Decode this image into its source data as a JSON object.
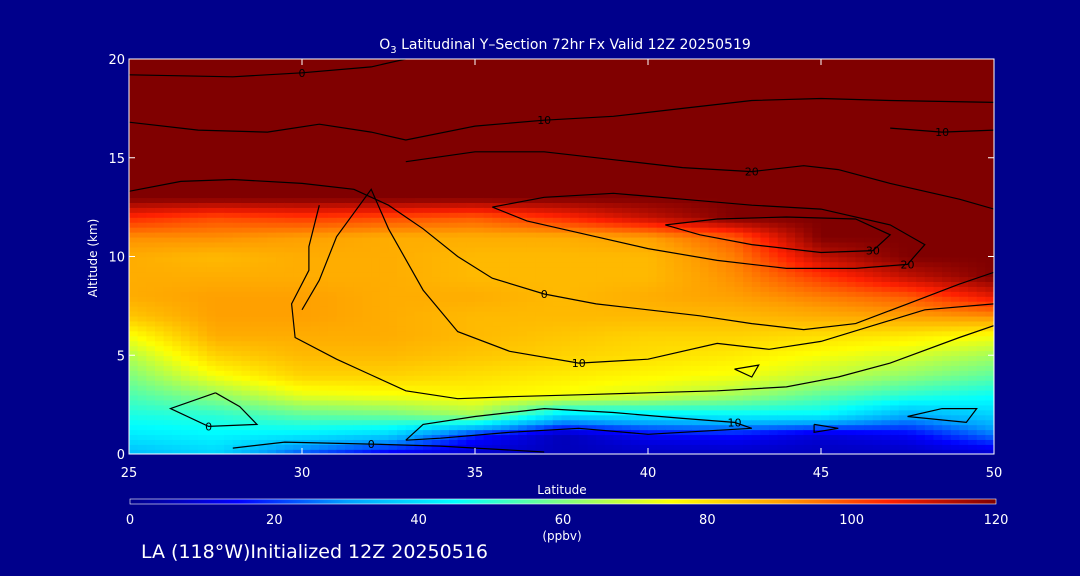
{
  "chart_data": {
    "type": "heatmap",
    "title_main": "O",
    "title_sub": "3",
    "title_rest": " Latitudinal Y–Section 72hr  Fx Valid 12Z 20250519",
    "xlabel": "Latitude",
    "ylabel": "Altitude (km)",
    "xlim": [
      25,
      50
    ],
    "ylim": [
      0,
      20
    ],
    "x_ticks": [
      25,
      30,
      35,
      40,
      45,
      50
    ],
    "y_ticks": [
      0,
      5,
      10,
      15,
      20
    ],
    "colorbar": {
      "ticks": [
        0,
        20,
        40,
        60,
        80,
        100,
        120
      ],
      "unit_label": "(ppbv)",
      "range": [
        0,
        120
      ]
    },
    "field": {
      "lat": [
        25,
        27.5,
        30,
        32.5,
        35,
        37.5,
        40,
        42.5,
        45,
        47.5,
        50
      ],
      "alt": [
        0,
        1,
        2,
        3,
        4,
        5,
        6,
        7,
        8,
        9,
        10,
        11,
        12,
        13,
        14,
        15,
        16,
        17,
        18,
        19,
        20
      ],
      "values": [
        [
          34,
          38,
          22,
          12,
          8,
          6,
          6,
          6,
          6,
          6,
          8
        ],
        [
          42,
          44,
          42,
          38,
          18,
          6,
          14,
          16,
          10,
          14,
          26
        ],
        [
          48,
          50,
          56,
          58,
          64,
          40,
          42,
          44,
          44,
          32,
          38
        ],
        [
          54,
          62,
          72,
          74,
          76,
          74,
          70,
          64,
          56,
          50,
          46
        ],
        [
          60,
          74,
          82,
          82,
          80,
          78,
          76,
          74,
          68,
          62,
          56
        ],
        [
          66,
          82,
          86,
          86,
          84,
          82,
          80,
          78,
          74,
          70,
          64
        ],
        [
          74,
          88,
          88,
          88,
          86,
          84,
          82,
          82,
          80,
          78,
          74
        ],
        [
          84,
          90,
          90,
          88,
          86,
          86,
          86,
          86,
          88,
          90,
          92
        ],
        [
          88,
          90,
          90,
          88,
          88,
          86,
          88,
          90,
          94,
          98,
          108
        ],
        [
          88,
          88,
          88,
          88,
          86,
          86,
          86,
          92,
          102,
          112,
          120
        ],
        [
          88,
          86,
          88,
          88,
          86,
          86,
          86,
          94,
          112,
          120,
          120
        ],
        [
          92,
          92,
          90,
          88,
          88,
          88,
          90,
          98,
          120,
          120,
          120
        ],
        [
          104,
          100,
          102,
          100,
          98,
          104,
          112,
          120,
          120,
          120,
          120
        ],
        [
          120,
          120,
          120,
          120,
          120,
          120,
          120,
          120,
          120,
          120,
          120
        ],
        [
          120,
          120,
          120,
          120,
          120,
          120,
          120,
          120,
          120,
          120,
          120
        ],
        [
          120,
          120,
          120,
          120,
          120,
          120,
          120,
          120,
          120,
          120,
          120
        ],
        [
          120,
          120,
          120,
          120,
          120,
          120,
          120,
          120,
          120,
          120,
          120
        ],
        [
          120,
          120,
          120,
          120,
          120,
          120,
          120,
          120,
          120,
          120,
          120
        ],
        [
          120,
          120,
          120,
          120,
          120,
          120,
          120,
          120,
          120,
          120,
          120
        ],
        [
          120,
          120,
          120,
          120,
          120,
          120,
          120,
          120,
          120,
          120,
          120
        ],
        [
          120,
          120,
          120,
          120,
          120,
          120,
          120,
          120,
          120,
          120,
          120
        ]
      ]
    },
    "contour_lines": [
      {
        "label": "0",
        "points": [
          [
            25,
            19.2
          ],
          [
            28,
            19.1
          ],
          [
            30,
            19.3
          ],
          [
            32,
            19.6
          ],
          [
            33,
            20
          ]
        ]
      },
      {
        "label": "10",
        "points": [
          [
            25,
            16.8
          ],
          [
            27,
            16.4
          ],
          [
            29,
            16.3
          ],
          [
            30.5,
            16.7
          ],
          [
            32,
            16.3
          ],
          [
            33,
            15.9
          ],
          [
            35,
            16.6
          ],
          [
            37,
            16.9
          ],
          [
            39,
            17.1
          ],
          [
            41,
            17.5
          ],
          [
            43,
            17.9
          ],
          [
            45,
            18.0
          ],
          [
            47,
            17.9
          ],
          [
            50,
            17.8
          ]
        ]
      },
      {
        "label": "10",
        "points": [
          [
            47,
            16.5
          ],
          [
            48.5,
            16.3
          ],
          [
            50,
            16.4
          ]
        ]
      },
      {
        "label": "0",
        "points": [
          [
            25,
            13.3
          ],
          [
            26.5,
            13.8
          ],
          [
            28,
            13.9
          ],
          [
            30,
            13.7
          ],
          [
            31.5,
            13.4
          ],
          [
            32.5,
            12.6
          ],
          [
            33.5,
            11.4
          ],
          [
            34.5,
            10.0
          ],
          [
            35.5,
            8.9
          ],
          [
            37,
            8.1
          ],
          [
            38.5,
            7.6
          ],
          [
            40,
            7.3
          ],
          [
            41.5,
            7.0
          ],
          [
            43,
            6.6
          ],
          [
            44.5,
            6.3
          ],
          [
            46,
            6.6
          ],
          [
            47.5,
            7.6
          ],
          [
            49,
            8.6
          ],
          [
            50,
            9.2
          ]
        ]
      },
      {
        "label": "20",
        "points": [
          [
            33,
            14.8
          ],
          [
            35,
            15.3
          ],
          [
            37,
            15.3
          ],
          [
            39,
            14.9
          ],
          [
            41,
            14.5
          ],
          [
            43,
            14.3
          ],
          [
            44.5,
            14.6
          ],
          [
            45.5,
            14.4
          ],
          [
            47,
            13.7
          ],
          [
            49,
            12.9
          ],
          [
            50,
            12.4
          ]
        ]
      },
      {
        "label": "20",
        "points": [
          [
            35.5,
            12.5
          ],
          [
            37,
            13.0
          ],
          [
            39,
            13.2
          ],
          [
            41,
            12.9
          ],
          [
            43,
            12.6
          ],
          [
            45,
            12.4
          ],
          [
            47,
            11.6
          ],
          [
            48,
            10.6
          ],
          [
            47.5,
            9.6
          ],
          [
            46,
            9.4
          ],
          [
            44,
            9.4
          ],
          [
            42,
            9.8
          ],
          [
            40,
            10.4
          ],
          [
            38,
            11.2
          ],
          [
            36.5,
            11.8
          ],
          [
            35.5,
            12.5
          ]
        ]
      },
      {
        "label": "30",
        "points": [
          [
            40.5,
            11.6
          ],
          [
            42,
            11.9
          ],
          [
            44,
            12.0
          ],
          [
            46,
            11.9
          ],
          [
            47,
            11.1
          ],
          [
            46.5,
            10.3
          ],
          [
            45,
            10.2
          ],
          [
            43,
            10.6
          ],
          [
            41.5,
            11.1
          ],
          [
            40.5,
            11.6
          ]
        ]
      },
      {
        "label": "10",
        "points": [
          [
            30,
            7.3
          ],
          [
            30.5,
            8.8
          ],
          [
            31,
            11.0
          ],
          [
            32,
            13.4
          ],
          [
            32.5,
            11.4
          ],
          [
            33.5,
            8.3
          ],
          [
            34.5,
            6.2
          ],
          [
            36,
            5.2
          ],
          [
            38,
            4.6
          ],
          [
            40,
            4.8
          ],
          [
            42,
            5.6
          ],
          [
            43.5,
            5.3
          ],
          [
            45,
            5.7
          ],
          [
            46.5,
            6.5
          ],
          [
            48,
            7.3
          ],
          [
            50,
            7.6
          ]
        ]
      },
      {
        "label": "",
        "points": [
          [
            30.5,
            12.6
          ],
          [
            30.2,
            10.5
          ],
          [
            30.2,
            9.3
          ],
          [
            29.7,
            7.6
          ],
          [
            29.8,
            5.9
          ],
          [
            31,
            4.8
          ],
          [
            32,
            4.0
          ],
          [
            33,
            3.2
          ],
          [
            34.5,
            2.8
          ],
          [
            36,
            2.9
          ],
          [
            38,
            3.0
          ],
          [
            40,
            3.1
          ],
          [
            42,
            3.2
          ],
          [
            44,
            3.4
          ],
          [
            45.5,
            3.9
          ],
          [
            47,
            4.6
          ],
          [
            49,
            5.9
          ],
          [
            50,
            6.5
          ]
        ]
      },
      {
        "label": "10",
        "points": [
          [
            33,
            0.7
          ],
          [
            33.5,
            1.5
          ],
          [
            35,
            1.9
          ],
          [
            37,
            2.3
          ],
          [
            39,
            2.1
          ],
          [
            41,
            1.8
          ],
          [
            42.5,
            1.6
          ],
          [
            43,
            1.3
          ],
          [
            40,
            1.0
          ],
          [
            38,
            1.3
          ],
          [
            36,
            1.1
          ],
          [
            34,
            0.8
          ],
          [
            33,
            0.7
          ]
        ]
      },
      {
        "label": "0",
        "points": [
          [
            27.5,
            3.1
          ],
          [
            28.2,
            2.4
          ],
          [
            28.7,
            1.5
          ],
          [
            27.3,
            1.4
          ],
          [
            26.2,
            2.3
          ],
          [
            27.5,
            3.1
          ]
        ]
      },
      {
        "label": "0",
        "points": [
          [
            28,
            0.3
          ],
          [
            29.5,
            0.6
          ],
          [
            32,
            0.5
          ],
          [
            34,
            0.4
          ],
          [
            37,
            0.1
          ]
        ]
      },
      {
        "label": "",
        "points": [
          [
            42.5,
            4.3
          ],
          [
            43.2,
            4.5
          ],
          [
            43.0,
            3.9
          ],
          [
            42.5,
            4.3
          ]
        ]
      },
      {
        "label": "",
        "points": [
          [
            44.8,
            1.5
          ],
          [
            45.5,
            1.3
          ],
          [
            44.8,
            1.1
          ],
          [
            44.8,
            1.5
          ]
        ]
      },
      {
        "label": "",
        "points": [
          [
            47.5,
            1.9
          ],
          [
            48.5,
            2.3
          ],
          [
            49.5,
            2.3
          ],
          [
            49.2,
            1.6
          ],
          [
            47.5,
            1.9
          ]
        ]
      }
    ]
  },
  "footer_label": "LA (118°W)Initialized 12Z 20250516"
}
